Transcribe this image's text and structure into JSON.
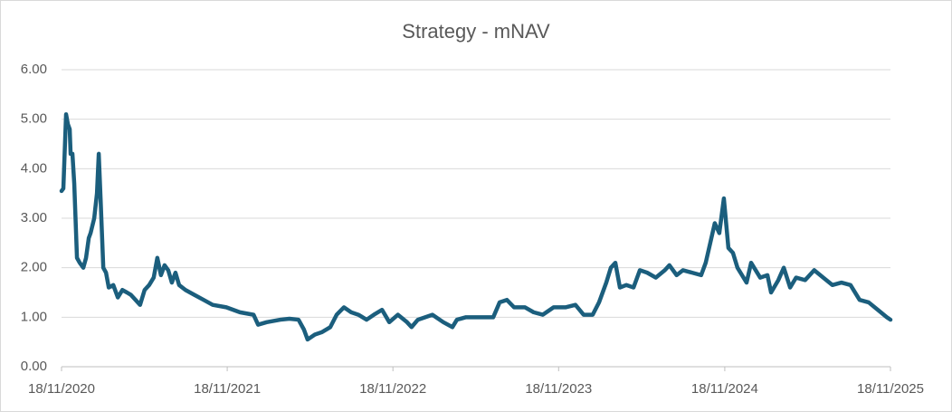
{
  "chart_data": {
    "type": "line",
    "title": "Strategy - mNAV",
    "x": [
      "2020-11-18",
      "2020-11-22",
      "2020-11-26",
      "2020-11-28",
      "2020-12-02",
      "2020-12-06",
      "2020-12-08",
      "2020-12-12",
      "2020-12-16",
      "2020-12-22",
      "2020-12-28",
      "2021-01-05",
      "2021-01-11",
      "2021-01-17",
      "2021-01-21",
      "2021-01-29",
      "2021-02-04",
      "2021-02-08",
      "2021-02-12",
      "2021-02-18",
      "2021-02-24",
      "2021-03-02",
      "2021-03-12",
      "2021-03-22",
      "2021-04-01",
      "2021-04-11",
      "2021-04-20",
      "2021-04-30",
      "2021-05-10",
      "2021-05-20",
      "2021-05-30",
      "2021-06-09",
      "2021-06-17",
      "2021-06-25",
      "2021-07-03",
      "2021-07-11",
      "2021-07-19",
      "2021-07-27",
      "2021-08-04",
      "2021-08-18",
      "2021-09-07",
      "2021-09-27",
      "2021-10-17",
      "2021-11-16",
      "2021-12-16",
      "2022-01-15",
      "2022-01-25",
      "2022-02-13",
      "2022-03-15",
      "2022-04-04",
      "2022-04-24",
      "2022-05-06",
      "2022-05-14",
      "2022-05-30",
      "2022-06-15",
      "2022-07-03",
      "2022-07-17",
      "2022-08-02",
      "2022-08-18",
      "2022-09-03",
      "2022-09-21",
      "2022-10-07",
      "2022-10-25",
      "2022-11-10",
      "2022-11-29",
      "2022-12-19",
      "2022-12-29",
      "2023-01-12",
      "2023-01-28",
      "2023-02-13",
      "2023-03-09",
      "2023-03-29",
      "2023-04-08",
      "2023-04-28",
      "2023-05-28",
      "2023-06-27",
      "2023-07-11",
      "2023-07-27",
      "2023-08-12",
      "2023-09-05",
      "2023-09-24",
      "2023-10-14",
      "2023-11-07",
      "2023-12-03",
      "2023-12-25",
      "2024-01-12",
      "2024-02-01",
      "2024-02-15",
      "2024-03-02",
      "2024-03-12",
      "2024-03-22",
      "2024-04-01",
      "2024-04-15",
      "2024-05-01",
      "2024-05-15",
      "2024-05-31",
      "2024-06-19",
      "2024-07-09",
      "2024-07-19",
      "2024-08-04",
      "2024-08-18",
      "2024-09-07",
      "2024-09-27",
      "2024-10-07",
      "2024-10-17",
      "2024-10-27",
      "2024-11-06",
      "2024-11-16",
      "2024-11-26",
      "2024-12-06",
      "2024-12-16",
      "2024-12-26",
      "2025-01-05",
      "2025-01-15",
      "2025-02-04",
      "2025-02-20",
      "2025-02-28",
      "2025-03-16",
      "2025-03-28",
      "2025-04-11",
      "2025-04-24",
      "2025-05-14",
      "2025-06-03",
      "2025-06-23",
      "2025-07-13",
      "2025-08-02",
      "2025-08-22",
      "2025-09-11",
      "2025-10-01",
      "2025-10-21",
      "2025-11-10",
      "2025-11-18"
    ],
    "series": [
      {
        "name": "mNAV",
        "color": "#1b5e7d",
        "values": [
          3.55,
          3.6,
          4.6,
          5.1,
          4.9,
          4.8,
          4.3,
          4.3,
          3.7,
          2.2,
          2.1,
          2.0,
          2.2,
          2.6,
          2.7,
          3.0,
          3.5,
          4.3,
          3.4,
          2.0,
          1.9,
          1.6,
          1.65,
          1.4,
          1.55,
          1.5,
          1.45,
          1.35,
          1.25,
          1.55,
          1.65,
          1.8,
          2.2,
          1.85,
          2.05,
          1.95,
          1.7,
          1.9,
          1.65,
          1.55,
          1.45,
          1.35,
          1.25,
          1.2,
          1.1,
          1.05,
          0.85,
          0.9,
          0.95,
          0.97,
          0.95,
          0.75,
          0.55,
          0.65,
          0.7,
          0.8,
          1.05,
          1.2,
          1.1,
          1.05,
          0.95,
          1.05,
          1.15,
          0.9,
          1.05,
          0.9,
          0.8,
          0.95,
          1.0,
          1.05,
          0.9,
          0.8,
          0.95,
          1.0,
          1.0,
          1.0,
          1.3,
          1.35,
          1.2,
          1.2,
          1.1,
          1.05,
          1.2,
          1.2,
          1.25,
          1.05,
          1.05,
          1.3,
          1.7,
          2.0,
          2.1,
          1.6,
          1.65,
          1.6,
          1.95,
          1.9,
          1.8,
          1.95,
          2.05,
          1.85,
          1.95,
          1.9,
          1.85,
          2.1,
          2.5,
          2.9,
          2.7,
          3.4,
          2.4,
          2.3,
          2.0,
          1.85,
          1.7,
          2.1,
          1.8,
          1.85,
          1.5,
          1.75,
          2.0,
          1.6,
          1.8,
          1.75,
          1.95,
          1.8,
          1.65,
          1.7,
          1.65,
          1.35,
          1.3,
          1.15,
          1.0,
          0.95
        ]
      }
    ],
    "xlim": [
      "2020-11-18",
      "2025-11-18"
    ],
    "xticks": [
      {
        "value": "2020-11-18",
        "label": "18/11/2020"
      },
      {
        "value": "2021-11-18",
        "label": "18/11/2021"
      },
      {
        "value": "2022-11-18",
        "label": "18/11/2022"
      },
      {
        "value": "2023-11-18",
        "label": "18/11/2023"
      },
      {
        "value": "2024-11-18",
        "label": "18/11/2024"
      },
      {
        "value": "2025-11-18",
        "label": "18/11/2025"
      }
    ],
    "ylim": [
      0,
      6
    ],
    "yticks": [
      {
        "value": 0,
        "label": "0.00"
      },
      {
        "value": 1,
        "label": "1.00"
      },
      {
        "value": 2,
        "label": "2.00"
      },
      {
        "value": 3,
        "label": "3.00"
      },
      {
        "value": 4,
        "label": "4.00"
      },
      {
        "value": 5,
        "label": "5.00"
      },
      {
        "value": 6,
        "label": "6.00"
      }
    ],
    "grid": true
  }
}
